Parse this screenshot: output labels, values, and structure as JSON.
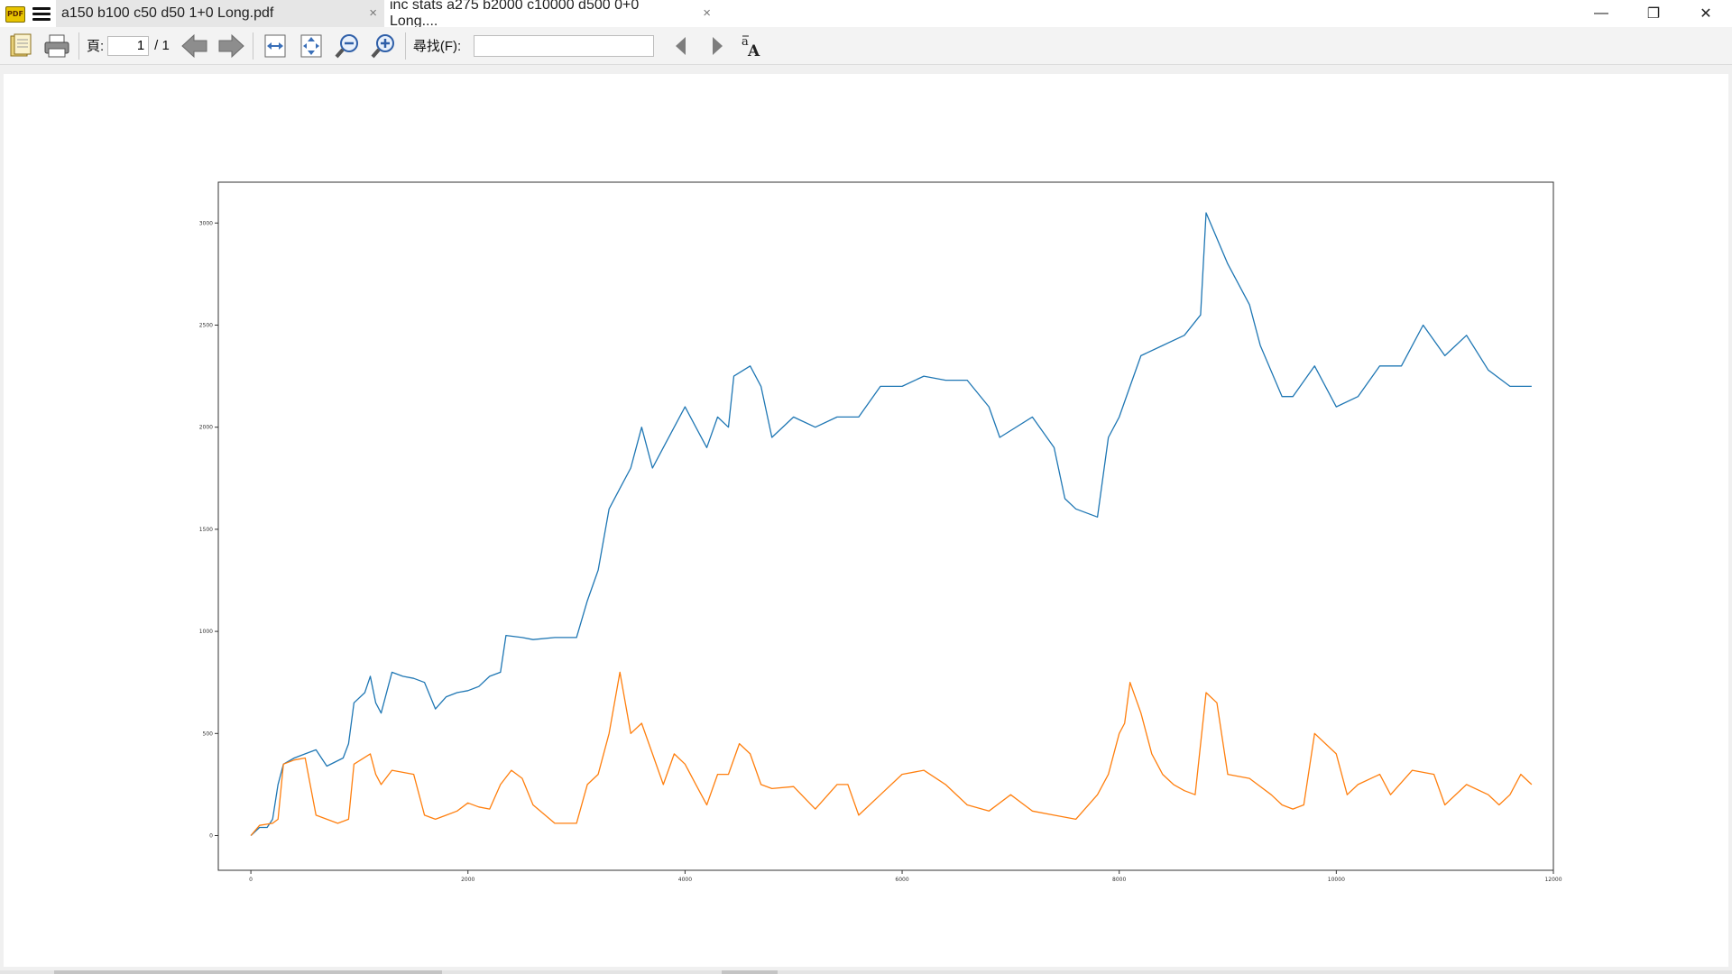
{
  "window": {
    "tabs": [
      {
        "label": "a150 b100 c50 d50 1+0 Long.pdf",
        "active": true
      },
      {
        "label": "inc stats a275 b2000 c10000 d500 0+0 Long....",
        "active": false
      }
    ],
    "tab_close_glyph": "×",
    "controls": {
      "minimize": "—",
      "maximize": "❐",
      "close": "✕"
    }
  },
  "toolbar": {
    "page_label": "頁:",
    "page_value": "1",
    "page_total": "/ 1",
    "find_label": "尋找(F):",
    "find_value": ""
  },
  "chart_data": {
    "type": "line",
    "xlim": [
      -300,
      12000
    ],
    "ylim": [
      -170,
      3200
    ],
    "xticks": [
      0,
      2000,
      4000,
      6000,
      8000,
      10000,
      12000
    ],
    "yticks": [
      0,
      500,
      1000,
      1500,
      2000,
      2500,
      3000
    ],
    "grid": false,
    "series": [
      {
        "color": "#1f77b4",
        "points": [
          [
            0,
            0
          ],
          [
            80,
            40
          ],
          [
            150,
            40
          ],
          [
            200,
            80
          ],
          [
            250,
            250
          ],
          [
            300,
            350
          ],
          [
            400,
            380
          ],
          [
            500,
            400
          ],
          [
            600,
            420
          ],
          [
            700,
            340
          ],
          [
            850,
            380
          ],
          [
            900,
            450
          ],
          [
            950,
            650
          ],
          [
            1050,
            700
          ],
          [
            1100,
            780
          ],
          [
            1150,
            650
          ],
          [
            1200,
            600
          ],
          [
            1300,
            800
          ],
          [
            1400,
            780
          ],
          [
            1500,
            770
          ],
          [
            1600,
            750
          ],
          [
            1700,
            620
          ],
          [
            1800,
            680
          ],
          [
            1900,
            700
          ],
          [
            2000,
            710
          ],
          [
            2100,
            730
          ],
          [
            2200,
            780
          ],
          [
            2300,
            800
          ],
          [
            2350,
            980
          ],
          [
            2500,
            970
          ],
          [
            2600,
            960
          ],
          [
            2800,
            970
          ],
          [
            3000,
            970
          ],
          [
            3100,
            1150
          ],
          [
            3200,
            1300
          ],
          [
            3300,
            1600
          ],
          [
            3400,
            1700
          ],
          [
            3500,
            1800
          ],
          [
            3600,
            2000
          ],
          [
            3700,
            1800
          ],
          [
            3800,
            1900
          ],
          [
            4000,
            2100
          ],
          [
            4100,
            2000
          ],
          [
            4200,
            1900
          ],
          [
            4300,
            2050
          ],
          [
            4400,
            2000
          ],
          [
            4450,
            2250
          ],
          [
            4600,
            2300
          ],
          [
            4700,
            2200
          ],
          [
            4800,
            1950
          ],
          [
            5000,
            2050
          ],
          [
            5200,
            2000
          ],
          [
            5400,
            2050
          ],
          [
            5600,
            2050
          ],
          [
            5800,
            2200
          ],
          [
            6000,
            2200
          ],
          [
            6200,
            2250
          ],
          [
            6400,
            2230
          ],
          [
            6600,
            2230
          ],
          [
            6800,
            2100
          ],
          [
            6900,
            1950
          ],
          [
            7200,
            2050
          ],
          [
            7400,
            1900
          ],
          [
            7500,
            1650
          ],
          [
            7600,
            1600
          ],
          [
            7800,
            1560
          ],
          [
            7900,
            1950
          ],
          [
            8000,
            2050
          ],
          [
            8100,
            2200
          ],
          [
            8200,
            2350
          ],
          [
            8400,
            2400
          ],
          [
            8600,
            2450
          ],
          [
            8750,
            2550
          ],
          [
            8800,
            3050
          ],
          [
            9000,
            2800
          ],
          [
            9200,
            2600
          ],
          [
            9300,
            2400
          ],
          [
            9500,
            2150
          ],
          [
            9600,
            2150
          ],
          [
            9800,
            2300
          ],
          [
            10000,
            2100
          ],
          [
            10200,
            2150
          ],
          [
            10400,
            2300
          ],
          [
            10600,
            2300
          ],
          [
            10800,
            2500
          ],
          [
            11000,
            2350
          ],
          [
            11200,
            2450
          ],
          [
            11400,
            2280
          ],
          [
            11600,
            2200
          ],
          [
            11800,
            2200
          ]
        ]
      },
      {
        "color": "#ff7f0e",
        "points": [
          [
            0,
            0
          ],
          [
            80,
            50
          ],
          [
            200,
            60
          ],
          [
            250,
            80
          ],
          [
            300,
            350
          ],
          [
            400,
            370
          ],
          [
            500,
            380
          ],
          [
            600,
            100
          ],
          [
            700,
            80
          ],
          [
            800,
            60
          ],
          [
            900,
            80
          ],
          [
            950,
            350
          ],
          [
            1100,
            400
          ],
          [
            1150,
            300
          ],
          [
            1200,
            250
          ],
          [
            1300,
            320
          ],
          [
            1500,
            300
          ],
          [
            1600,
            100
          ],
          [
            1700,
            80
          ],
          [
            1800,
            100
          ],
          [
            1900,
            120
          ],
          [
            2000,
            160
          ],
          [
            2100,
            140
          ],
          [
            2200,
            130
          ],
          [
            2300,
            250
          ],
          [
            2400,
            320
          ],
          [
            2500,
            280
          ],
          [
            2600,
            150
          ],
          [
            2800,
            60
          ],
          [
            3000,
            60
          ],
          [
            3100,
            250
          ],
          [
            3200,
            300
          ],
          [
            3300,
            500
          ],
          [
            3400,
            800
          ],
          [
            3500,
            500
          ],
          [
            3600,
            550
          ],
          [
            3700,
            400
          ],
          [
            3800,
            250
          ],
          [
            3900,
            400
          ],
          [
            4000,
            350
          ],
          [
            4100,
            250
          ],
          [
            4200,
            150
          ],
          [
            4300,
            300
          ],
          [
            4400,
            300
          ],
          [
            4500,
            450
          ],
          [
            4600,
            400
          ],
          [
            4700,
            250
          ],
          [
            4800,
            230
          ],
          [
            5000,
            240
          ],
          [
            5200,
            130
          ],
          [
            5400,
            250
          ],
          [
            5500,
            250
          ],
          [
            5600,
            100
          ],
          [
            5800,
            200
          ],
          [
            6000,
            300
          ],
          [
            6200,
            320
          ],
          [
            6400,
            250
          ],
          [
            6600,
            150
          ],
          [
            6800,
            120
          ],
          [
            7000,
            200
          ],
          [
            7200,
            120
          ],
          [
            7400,
            100
          ],
          [
            7600,
            80
          ],
          [
            7800,
            200
          ],
          [
            7900,
            300
          ],
          [
            8000,
            500
          ],
          [
            8050,
            550
          ],
          [
            8100,
            750
          ],
          [
            8200,
            600
          ],
          [
            8300,
            400
          ],
          [
            8400,
            300
          ],
          [
            8500,
            250
          ],
          [
            8600,
            220
          ],
          [
            8700,
            200
          ],
          [
            8800,
            700
          ],
          [
            8900,
            650
          ],
          [
            9000,
            300
          ],
          [
            9200,
            280
          ],
          [
            9400,
            200
          ],
          [
            9500,
            150
          ],
          [
            9600,
            130
          ],
          [
            9700,
            150
          ],
          [
            9800,
            500
          ],
          [
            10000,
            400
          ],
          [
            10100,
            200
          ],
          [
            10200,
            250
          ],
          [
            10400,
            300
          ],
          [
            10500,
            200
          ],
          [
            10700,
            320
          ],
          [
            10900,
            300
          ],
          [
            11000,
            150
          ],
          [
            11200,
            250
          ],
          [
            11400,
            200
          ],
          [
            11500,
            150
          ],
          [
            11600,
            200
          ],
          [
            11700,
            300
          ],
          [
            11800,
            250
          ]
        ]
      }
    ]
  }
}
